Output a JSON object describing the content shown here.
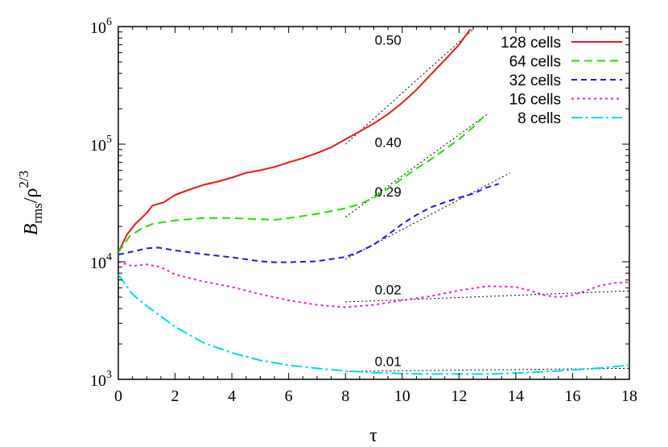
{
  "chart_data": {
    "type": "line",
    "xlabel": "τ",
    "ylabel": {
      "main": "B",
      "sub": "rms",
      "sep": "/ρ",
      "sup": "2/3"
    },
    "xlim": [
      0,
      18
    ],
    "ylim": [
      1000,
      1000000
    ],
    "yscale": "log",
    "x_ticks": [
      0,
      2,
      4,
      6,
      8,
      10,
      12,
      14,
      16,
      18
    ],
    "y_ticks": [
      {
        "value": 1000,
        "base": "10",
        "exp": "3"
      },
      {
        "value": 10000,
        "base": "10",
        "exp": "4"
      },
      {
        "value": 100000,
        "base": "10",
        "exp": "5"
      },
      {
        "value": 1000000,
        "base": "10",
        "exp": "6"
      }
    ],
    "legend_position": "top-right",
    "series": [
      {
        "name": "128 cells",
        "color": "#e41a1c",
        "dash": "solid",
        "x": [
          0,
          0.3,
          0.6,
          1.0,
          1.2,
          1.6,
          2.0,
          2.5,
          3.0,
          3.5,
          4.0,
          4.5,
          5.0,
          5.5,
          6.0,
          6.5,
          7.0,
          7.5,
          8.0,
          8.5,
          9.0,
          9.5,
          10.0,
          10.5,
          11.0,
          11.5,
          12.0,
          12.4
        ],
        "y": [
          12000,
          17000,
          21000,
          26000,
          30000,
          32000,
          37000,
          41000,
          45000,
          48000,
          52000,
          57000,
          60000,
          64000,
          70000,
          76000,
          84000,
          94000,
          110000,
          128000,
          150000,
          180000,
          225000,
          290000,
          390000,
          520000,
          700000,
          950000
        ]
      },
      {
        "name": "64 cells",
        "color": "#22dd00",
        "dash": "10,6",
        "x": [
          0,
          0.4,
          0.8,
          1.2,
          2.0,
          3.0,
          4.0,
          5.0,
          5.5,
          6.0,
          7.0,
          8.0,
          8.5,
          9.0,
          9.5,
          10.0,
          10.5,
          11.0,
          11.5,
          12.0,
          12.5,
          12.9
        ],
        "y": [
          12000,
          16500,
          19000,
          21000,
          22500,
          23500,
          23500,
          23000,
          22700,
          23500,
          25500,
          28500,
          31000,
          35000,
          42000,
          51000,
          62000,
          74000,
          90000,
          110000,
          140000,
          175000
        ]
      },
      {
        "name": "32 cells",
        "color": "#1a1ad6",
        "dash": "7,5",
        "x": [
          0,
          0.5,
          1.0,
          1.4,
          2.0,
          3.0,
          4.0,
          5.0,
          5.5,
          6.0,
          7.0,
          8.0,
          8.5,
          9.0,
          9.5,
          10.0,
          10.5,
          11.0,
          11.5,
          12.0,
          12.5,
          13.0,
          13.4
        ],
        "y": [
          11500,
          12200,
          13000,
          13200,
          12500,
          11600,
          10900,
          10100,
          9900,
          9900,
          10100,
          11000,
          12200,
          14000,
          17000,
          21000,
          25000,
          29000,
          32000,
          35000,
          38000,
          43000,
          46000
        ]
      },
      {
        "name": "16 cells",
        "color": "#e020e0",
        "dash": "3,4",
        "x": [
          0,
          0.5,
          1.0,
          1.5,
          2.0,
          3.0,
          4.0,
          5.0,
          6.0,
          7.0,
          8.0,
          9.0,
          10.0,
          11.0,
          12.0,
          13.0,
          14.0,
          14.5,
          15.0,
          15.5,
          16.0,
          16.5,
          17.0,
          17.5,
          18.0
        ],
        "y": [
          10000,
          9200,
          9500,
          9000,
          7800,
          6800,
          6100,
          5300,
          4700,
          4300,
          4100,
          4300,
          4700,
          5100,
          5700,
          6200,
          6100,
          5700,
          5200,
          5000,
          5200,
          5700,
          6300,
          6600,
          6700
        ]
      },
      {
        "name": "8 cells",
        "color": "#00d8e8",
        "dash": "14,4,3,4",
        "x": [
          0,
          0.5,
          1.0,
          2.0,
          3.0,
          4.0,
          5.0,
          6.0,
          7.0,
          8.0,
          9.0,
          10.0,
          11.0,
          12.0,
          13.0,
          14.0,
          15.0,
          16.0,
          17.0,
          18.0
        ],
        "y": [
          7800,
          5300,
          4200,
          2800,
          2050,
          1680,
          1450,
          1320,
          1240,
          1180,
          1140,
          1120,
          1110,
          1110,
          1110,
          1130,
          1160,
          1200,
          1250,
          1320
        ]
      }
    ],
    "fit_lines": [
      {
        "label": "0.50",
        "x": [
          8,
          12.5
        ],
        "y": [
          100000,
          950000
        ],
        "label_at": [
          9.5,
          700000
        ]
      },
      {
        "label": "0.40",
        "x": [
          8,
          13
        ],
        "y": [
          24000,
          180000
        ],
        "label_at": [
          9.5,
          95000
        ]
      },
      {
        "label": "0.29",
        "x": [
          8,
          13.8
        ],
        "y": [
          10500,
          57000
        ],
        "label_at": [
          9.5,
          36000
        ]
      },
      {
        "label": "0.02",
        "x": [
          8,
          18
        ],
        "y": [
          4550,
          5650
        ],
        "label_at": [
          9.5,
          5300
        ]
      },
      {
        "label": "0.01",
        "x": [
          8,
          18
        ],
        "y": [
          1170,
          1240
        ],
        "label_at": [
          9.5,
          1300
        ]
      }
    ]
  }
}
